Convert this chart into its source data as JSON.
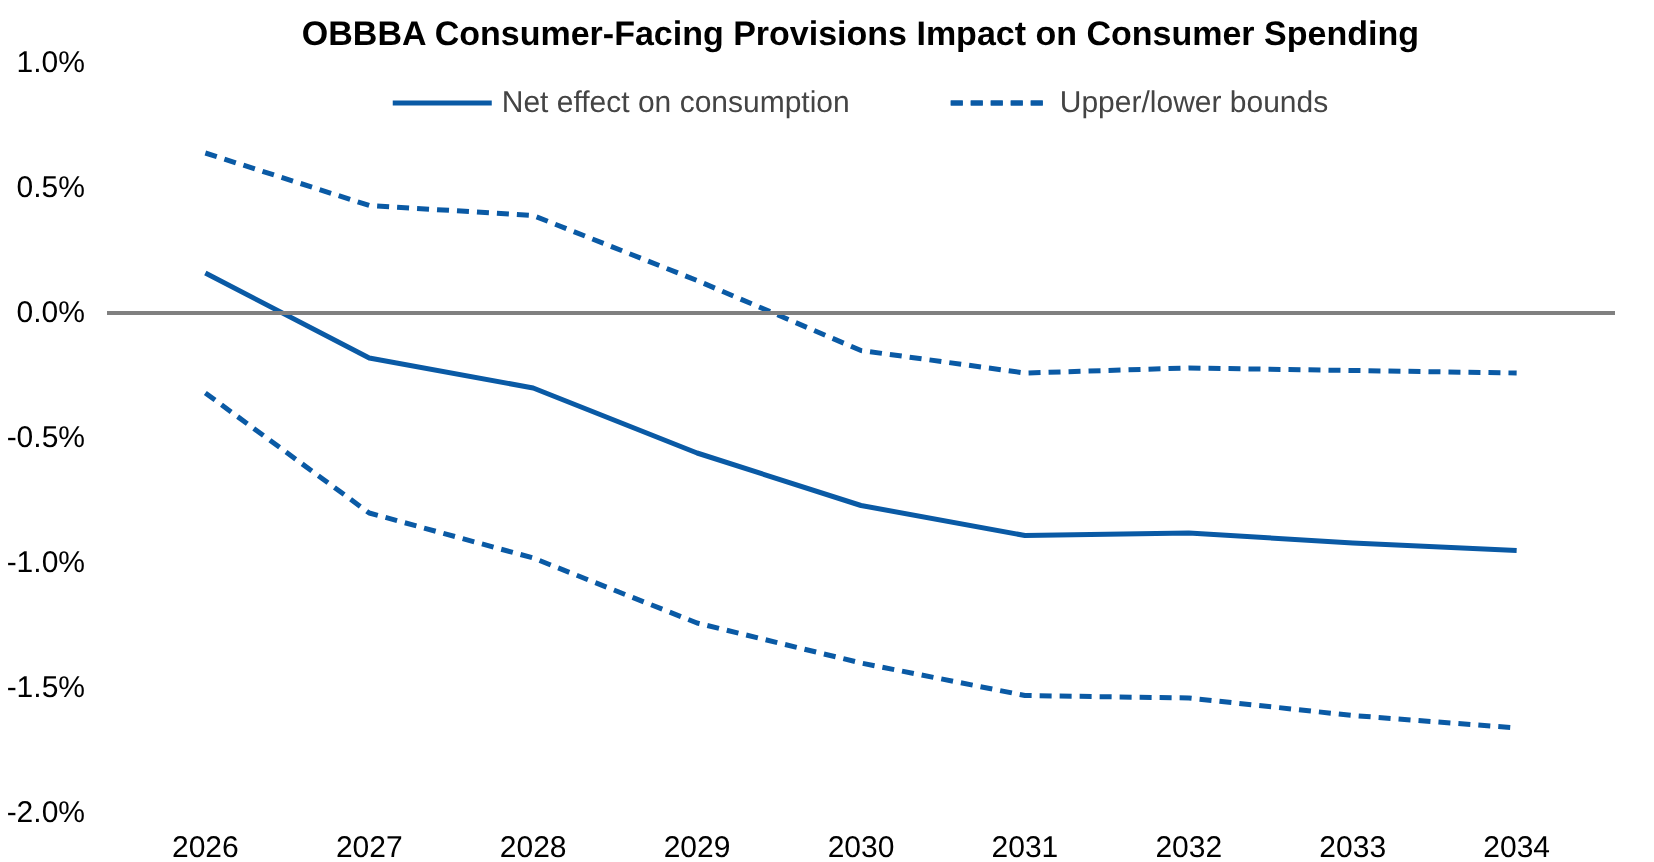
{
  "chart_data": {
    "type": "line",
    "title": "OBBBA Consumer-Facing Provisions Impact on Consumer Spending",
    "categories": [
      "2026",
      "2027",
      "2028",
      "2029",
      "2030",
      "2031",
      "2032",
      "2033",
      "2034"
    ],
    "series": [
      {
        "name": "Net effect on consumption",
        "color": "#0a5aa5",
        "line_style": "solid",
        "values": [
          0.16,
          -0.18,
          -0.3,
          -0.56,
          -0.77,
          -0.89,
          -0.88,
          -0.92,
          -0.95
        ]
      },
      {
        "name": "Upper/lower bounds",
        "color": "#0a5aa5",
        "line_style": "dashed",
        "values": [
          0.64,
          0.43,
          0.39,
          0.13,
          -0.15,
          -0.24,
          -0.22,
          -0.23,
          -0.24
        ]
      },
      {
        "color": "#0a5aa5",
        "line_style": "dashed",
        "values": [
          -0.32,
          -0.8,
          -0.98,
          -1.24,
          -1.4,
          -1.53,
          -1.54,
          -1.61,
          -1.66
        ]
      }
    ],
    "ylim": [
      -2.0,
      1.0
    ],
    "yticks": [
      {
        "value": -2.0,
        "label": "-2.0%"
      },
      {
        "value": -1.5,
        "label": "-1.5%"
      },
      {
        "value": -1.0,
        "label": "-1.0%"
      },
      {
        "value": -0.5,
        "label": "-0.5%"
      },
      {
        "value": 0.0,
        "label": "0.0%"
      },
      {
        "value": 0.5,
        "label": "0.5%"
      },
      {
        "value": 1.0,
        "label": "1.0%"
      }
    ],
    "ref_lines": [
      {
        "axis": "y",
        "value": 0,
        "color": "#808080"
      }
    ],
    "grid": false,
    "legend": "top",
    "marker": "none"
  }
}
